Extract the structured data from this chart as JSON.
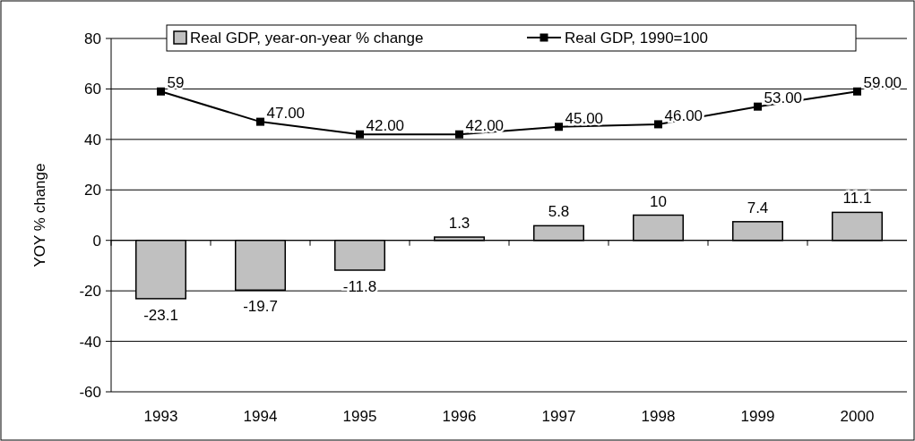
{
  "chart_data": {
    "type": "bar",
    "ylabel": "YOY % change",
    "categories": [
      "1993",
      "1994",
      "1995",
      "1996",
      "1997",
      "1998",
      "1999",
      "2000"
    ],
    "series": [
      {
        "name": "Real GDP, year-on-year % change",
        "color": "#c0c0c0",
        "values": [
          -23.1,
          -19.7,
          -11.8,
          1.3,
          5.8,
          10,
          7.4,
          11.1
        ],
        "value_labels": [
          "-23.1",
          "-19.7",
          "-11.8",
          "1.3",
          "5.8",
          "10",
          "7.4",
          "11.1"
        ]
      },
      {
        "name": "Real GDP, 1990=100",
        "type": "line",
        "color": "#000000",
        "marker": "square",
        "values": [
          59,
          47,
          42,
          42,
          45,
          46,
          53,
          59
        ],
        "value_labels": [
          "59",
          "47.00",
          "42.00",
          "42.00",
          "45.00",
          "46.00",
          "53.00",
          "59.00"
        ]
      }
    ],
    "ylim": [
      -60,
      80
    ],
    "yticks": [
      -60,
      -40,
      -20,
      0,
      20,
      40,
      60,
      80
    ],
    "grid": "y",
    "legend": "top"
  }
}
